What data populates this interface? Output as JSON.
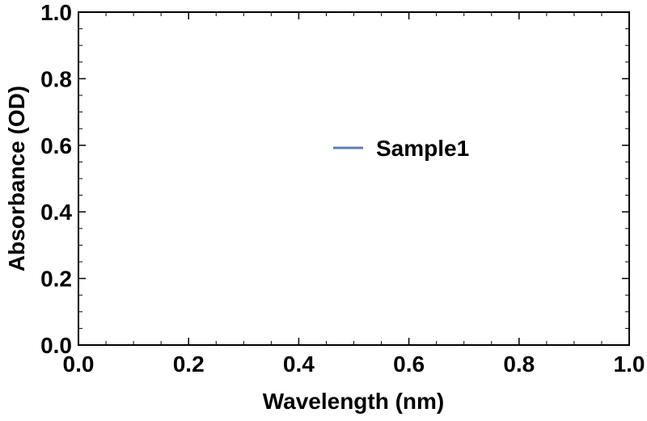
{
  "chart_data": {
    "type": "line",
    "title": "",
    "xlabel": "Wavelength (nm)",
    "ylabel": "Absorbance (OD)",
    "xlim": [
      0.0,
      1.0
    ],
    "ylim": [
      0.0,
      1.0
    ],
    "x_ticks": [
      "0.0",
      "0.2",
      "0.4",
      "0.6",
      "0.8",
      "1.0"
    ],
    "y_ticks": [
      "0.0",
      "0.2",
      "0.4",
      "0.6",
      "0.8",
      "1.0"
    ],
    "x_tick_values": [
      0.0,
      0.2,
      0.4,
      0.6,
      0.8,
      1.0
    ],
    "y_tick_values": [
      0.0,
      0.2,
      0.4,
      0.6,
      0.8,
      1.0
    ],
    "grid": false,
    "legend_position": "center",
    "series": [
      {
        "name": "Sample1",
        "color": "#5b7fb5",
        "x": [],
        "y": []
      }
    ]
  }
}
